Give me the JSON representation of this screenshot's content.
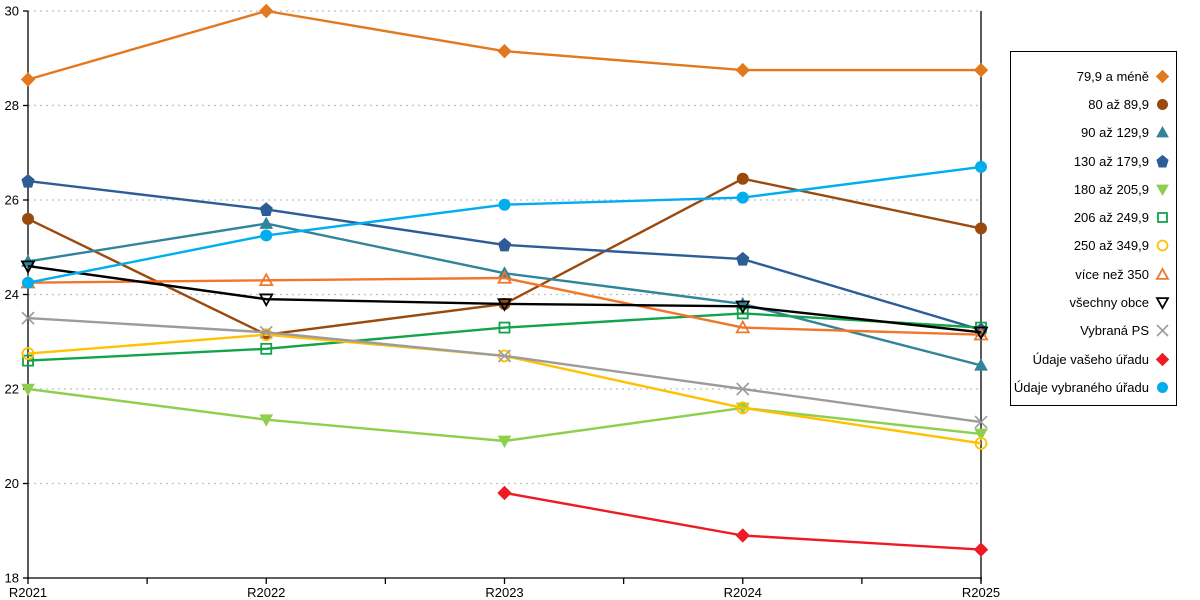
{
  "chart_data": {
    "type": "line",
    "title": "",
    "xlabel": "",
    "ylabel": "",
    "categories": [
      "R2021",
      "R2022",
      "R2023",
      "R2024",
      "R2025"
    ],
    "y_axis": {
      "min": 18,
      "max": 30,
      "tick_step": 2,
      "ticks": [
        18,
        20,
        22,
        24,
        26,
        28,
        30
      ]
    },
    "grid": "horizontal-dotted",
    "legend_position": "right",
    "series": [
      {
        "name": "79,9 a méně",
        "color": "#E2791F",
        "marker": "diamond",
        "fill": "filled",
        "values": [
          28.55,
          30.0,
          29.15,
          28.75,
          28.75
        ]
      },
      {
        "name": "80 až 89,9",
        "color": "#9A4A0D",
        "marker": "circle",
        "fill": "filled",
        "values": [
          25.6,
          23.15,
          23.8,
          26.45,
          25.4
        ]
      },
      {
        "name": "90 až 129,9",
        "color": "#31849B",
        "marker": "triangle-up",
        "fill": "filled",
        "values": [
          24.7,
          25.5,
          24.45,
          23.8,
          22.5
        ]
      },
      {
        "name": "130 až 179,9",
        "color": "#2E5C97",
        "marker": "pentagon",
        "fill": "filled",
        "values": [
          26.4,
          25.8,
          25.05,
          24.75,
          23.25
        ]
      },
      {
        "name": "180 až 205,9",
        "color": "#8ED04D",
        "marker": "triangle-down",
        "fill": "filled",
        "values": [
          22.0,
          21.35,
          20.9,
          21.6,
          21.05
        ]
      },
      {
        "name": "206 až 249,9",
        "color": "#12A34B",
        "marker": "square",
        "fill": "open",
        "values": [
          22.6,
          22.85,
          23.3,
          23.6,
          23.3
        ]
      },
      {
        "name": "250 až 349,9",
        "color": "#FFC104",
        "marker": "circle",
        "fill": "open",
        "values": [
          22.75,
          23.15,
          22.7,
          21.6,
          20.85
        ]
      },
      {
        "name": "více než 350",
        "color": "#F0762B",
        "marker": "triangle-up",
        "fill": "open",
        "values": [
          24.25,
          24.3,
          24.35,
          23.3,
          23.15
        ]
      },
      {
        "name": "všechny obce",
        "color": "#000000",
        "marker": "triangle-down",
        "fill": "open",
        "values": [
          24.6,
          23.9,
          23.8,
          23.75,
          23.2
        ]
      },
      {
        "name": "Vybraná PS",
        "color": "#9C9C9C",
        "marker": "x",
        "fill": "open",
        "values": [
          23.5,
          23.2,
          22.7,
          22.0,
          21.3
        ]
      },
      {
        "name": "Údaje vašeho úřadu",
        "color": "#EE1B24",
        "marker": "diamond",
        "fill": "filled",
        "values": [
          null,
          null,
          19.8,
          18.9,
          18.6
        ]
      },
      {
        "name": "Údaje vybraného úřadu",
        "color": "#00AEEF",
        "marker": "circle",
        "fill": "filled",
        "values": [
          24.25,
          25.25,
          25.9,
          26.05,
          26.7
        ]
      }
    ]
  },
  "colors": {
    "grid": "#C0C0C0",
    "axis": "#000000",
    "background": "#FFFFFF",
    "tick_label": "#000000"
  },
  "layout_hints": {
    "x_minor_ticks_between_categories": true
  }
}
